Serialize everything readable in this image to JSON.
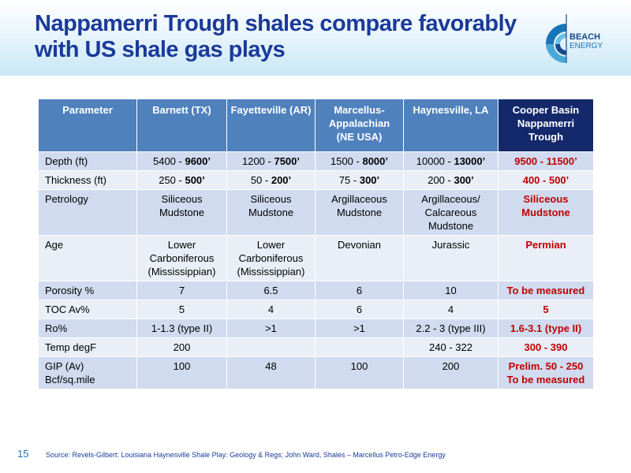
{
  "title": "Nappamerri Trough shales compare favorably with US shale gas plays",
  "logo": {
    "line1": "BEACH",
    "line2": "ENERGY"
  },
  "table": {
    "headers": [
      "Parameter",
      "Barnett (TX)",
      "Fayetteville (AR)",
      "Marcellus-Appalachian (NE USA)",
      "Haynesville, LA",
      "Cooper Basin Nappamerri Trough"
    ],
    "rows": [
      {
        "param": "Depth (ft)",
        "cells": [
          [
            "5400 - ",
            "9600’"
          ],
          [
            "1200 - ",
            "7500’"
          ],
          [
            "1500 - ",
            "8000’"
          ],
          [
            "10000 - ",
            "13000’"
          ]
        ],
        "cooper": "9500 - 11500’"
      },
      {
        "param": "Thickness (ft)",
        "cells": [
          [
            "250 - ",
            "500’"
          ],
          [
            "50 - ",
            "200’"
          ],
          [
            "75 - ",
            "300’"
          ],
          [
            "200 - ",
            "300’"
          ]
        ],
        "cooper": "400 - 500’"
      },
      {
        "param": "Petrology",
        "cells": [
          "Siliceous Mudstone",
          "Siliceous Mudstone",
          "Argillaceous Mudstone",
          "Argillaceous/ Calcareous Mudstone"
        ],
        "cooper": "Siliceous Mudstone"
      },
      {
        "param": "Age",
        "cells": [
          "Lower Carboniferous (Mississippian)",
          "Lower Carboniferous (Mississippian)",
          "Devonian",
          "Jurassic"
        ],
        "cooper": "Permian"
      },
      {
        "param": "Porosity %",
        "cells": [
          "7",
          "6.5",
          "6",
          "10"
        ],
        "cooper": "To be measured"
      },
      {
        "param": "TOC Av%",
        "cells": [
          "5",
          "4",
          "6",
          "4"
        ],
        "cooper": "5"
      },
      {
        "param": "Ro%",
        "cells": [
          "1-1.3 (type II)",
          ">1",
          ">1",
          "2.2 - 3 (type III)"
        ],
        "cooper": "1.6-3.1 (type II)"
      },
      {
        "param": "Temp degF",
        "cells": [
          "200",
          "",
          "",
          "240 - 322"
        ],
        "cooper": "300 - 390"
      },
      {
        "param": "GIP (Av) Bcf/sq.mile",
        "cells": [
          "100",
          "48",
          "100",
          "200"
        ],
        "cooper": "Prelim. 50 - 250 To be measured"
      }
    ]
  },
  "footer": {
    "page_number": "15",
    "source": "Source: Revels-Gilbert: Louisiana Haynesville Shale Play: Geology & Regs;  John Ward, Shales – Marcellus Petro-Edge Energy"
  },
  "colors": {
    "title": "#1a3a9a",
    "header_bg": "#4f81bd",
    "cooper_header_bg": "#13296b",
    "highlight_text": "#c00000"
  }
}
